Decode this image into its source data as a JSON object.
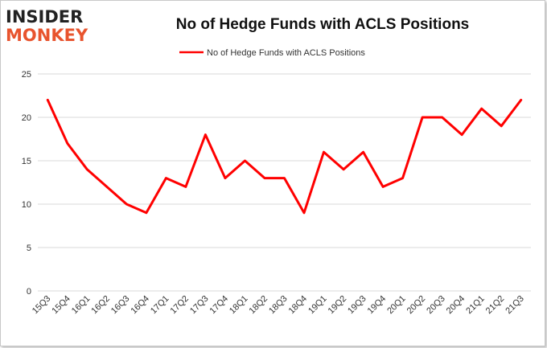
{
  "logo": {
    "line1": "INSIDER",
    "line2": "MONKEY"
  },
  "colors": {
    "series": "#ff0000",
    "grid": "#d9d9d9",
    "axis_text": "#333333",
    "logo_dark": "#222222",
    "logo_accent": "#e8542e"
  },
  "chart_data": {
    "type": "line",
    "title": "No of Hedge Funds with ACLS Positions",
    "xlabel": "",
    "ylabel": "",
    "ylim": [
      0,
      25
    ],
    "yticks": [
      0,
      5,
      10,
      15,
      20,
      25
    ],
    "grid": true,
    "legend_position": "top-center",
    "categories": [
      "15Q3",
      "15Q4",
      "16Q1",
      "16Q2",
      "16Q3",
      "16Q4",
      "17Q1",
      "17Q2",
      "17Q3",
      "17Q4",
      "18Q1",
      "18Q2",
      "18Q3",
      "18Q4",
      "19Q1",
      "19Q2",
      "19Q3",
      "19Q4",
      "20Q1",
      "20Q2",
      "20Q3",
      "20Q4",
      "21Q1",
      "21Q2",
      "21Q3"
    ],
    "series": [
      {
        "name": "No of Hedge Funds with ACLS Positions",
        "values": [
          22,
          17,
          14,
          12,
          10,
          9,
          13,
          12,
          18,
          13,
          15,
          13,
          13,
          9,
          16,
          14,
          16,
          12,
          13,
          20,
          20,
          18,
          21,
          19,
          22
        ]
      }
    ]
  }
}
